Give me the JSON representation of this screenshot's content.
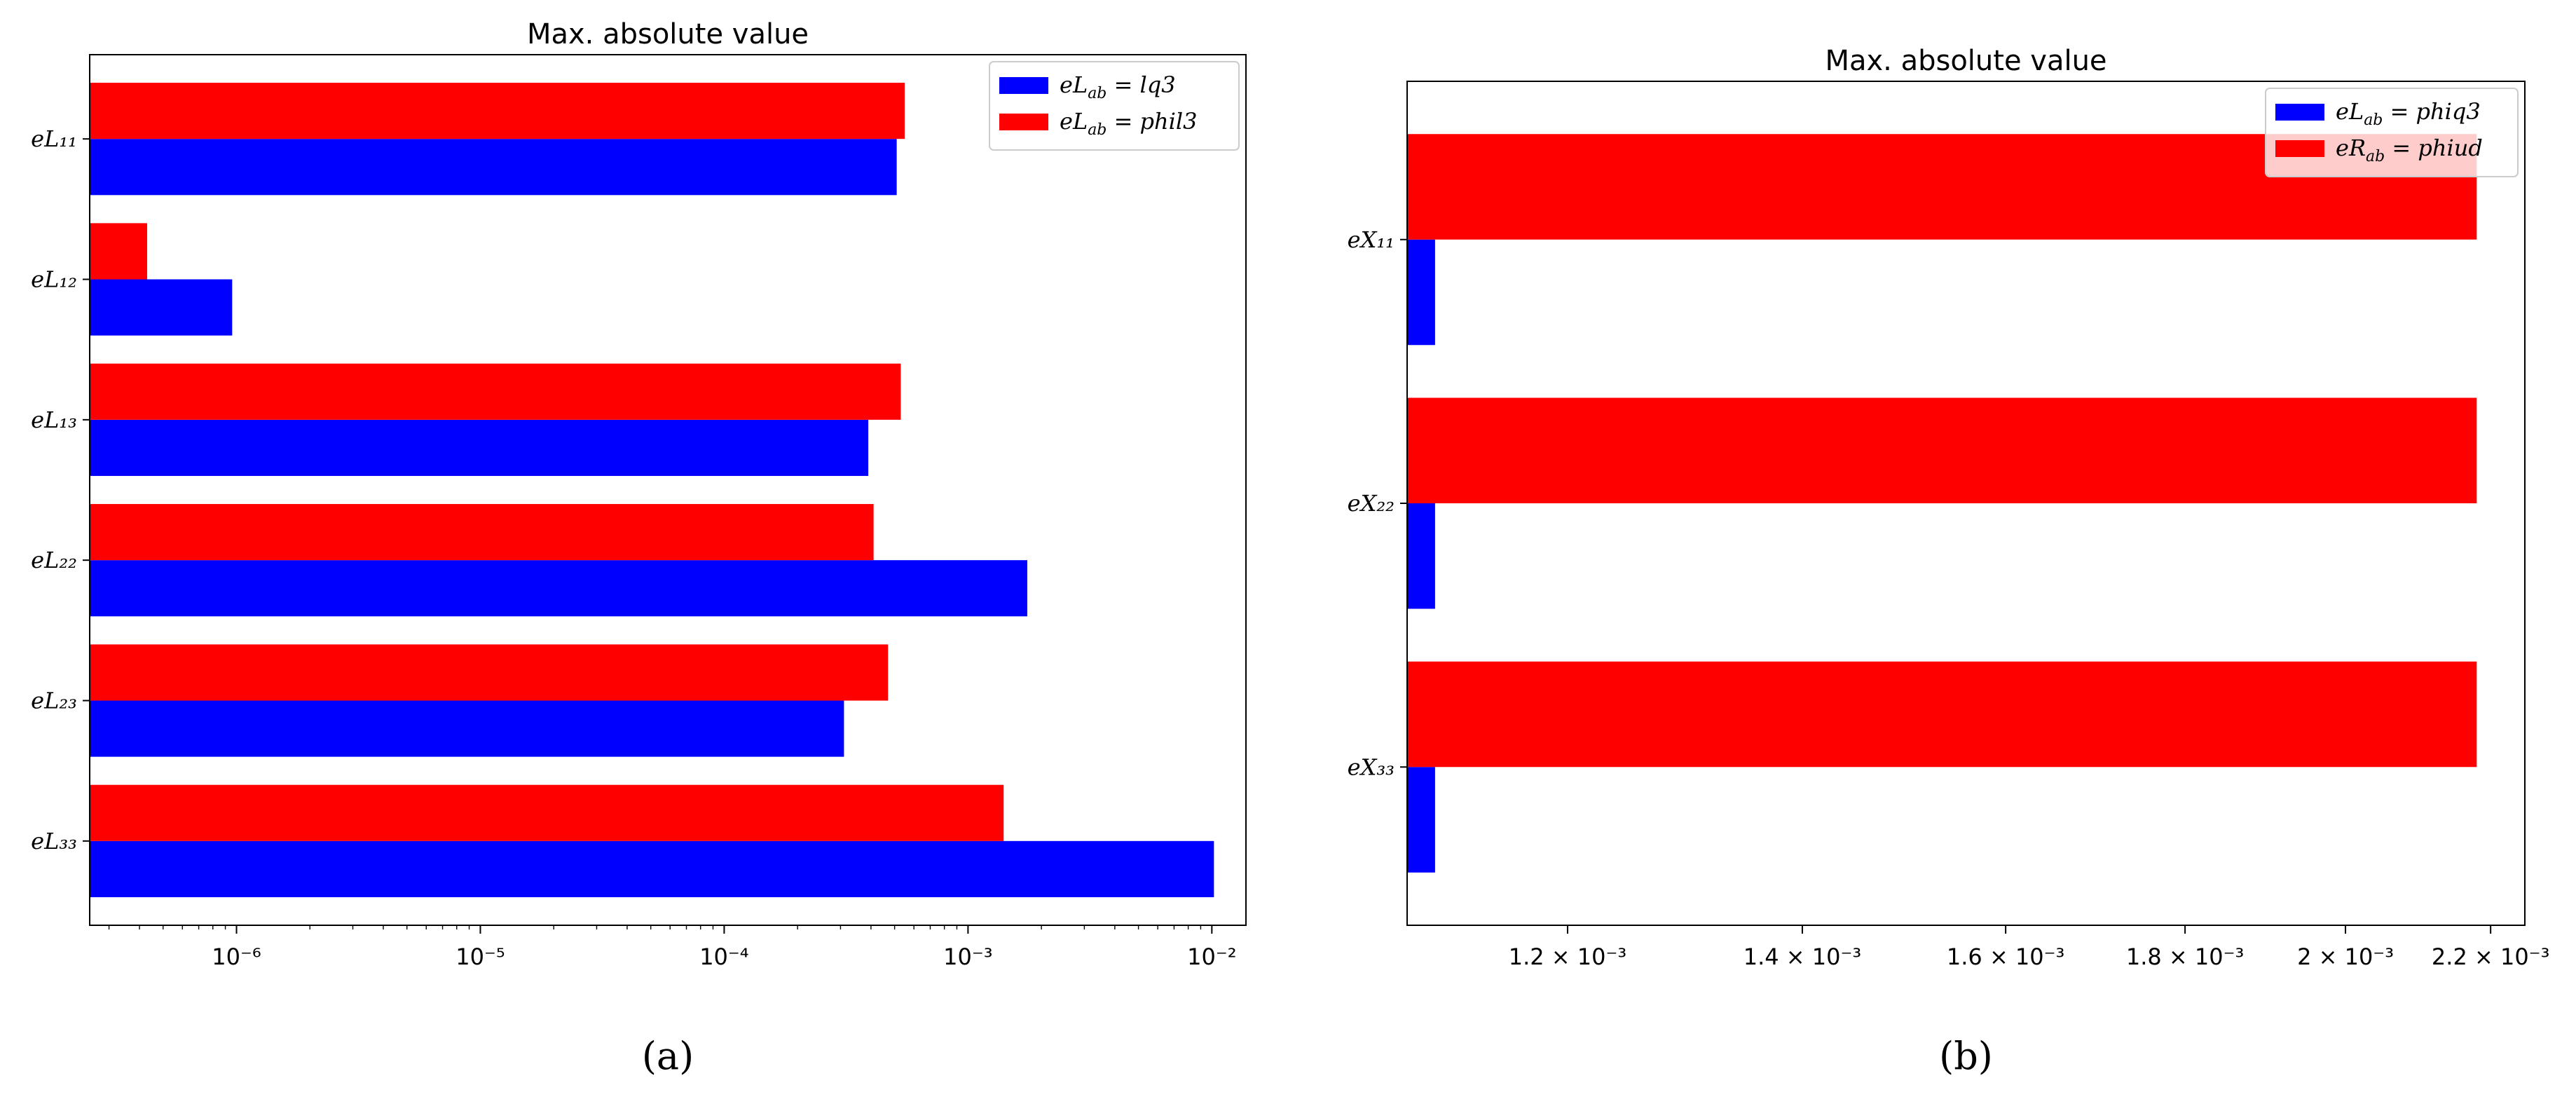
{
  "chart_data": [
    {
      "type": "bar",
      "orientation": "horizontal",
      "title": "Max. absolute value",
      "caption": "(a)",
      "xscale": "log",
      "xlim": [
        2.5e-07,
        0.0138
      ],
      "xticks": [
        1e-06,
        1e-05,
        0.0001,
        0.001,
        0.01
      ],
      "xtick_labels": [
        "10⁻⁶",
        "10⁻⁵",
        "10⁻⁴",
        "10⁻³",
        "10⁻²"
      ],
      "categories": [
        "eL₁₁",
        "eL₁₂",
        "eL₁₃",
        "eL₂₂",
        "eL₂₃",
        "eL₃₃"
      ],
      "series": [
        {
          "name": "eL_ab = lq3",
          "color": "#0000ff",
          "values": [
            0.00051,
            9.6e-07,
            0.00039,
            0.00175,
            0.00031,
            0.0102
          ]
        },
        {
          "name": "eL_ab = phil3",
          "color": "#ff0000",
          "values": [
            0.00055,
            4.3e-07,
            0.00053,
            0.00041,
            0.00047,
            0.0014
          ]
        }
      ],
      "legend": {
        "placement": "top-right",
        "entries": [
          "eL<sub>ab</sub> = lq3",
          "eL<sub>ab</sub> = phil3"
        ]
      }
    },
    {
      "type": "bar",
      "orientation": "horizontal",
      "title": "Max. absolute value",
      "caption": "(b)",
      "xscale": "log",
      "xlim": [
        0.00108,
        0.00225
      ],
      "xticks": [
        0.0012,
        0.0014,
        0.0016,
        0.0018,
        0.002,
        0.0022
      ],
      "xtick_labels": [
        "1.2 × 10⁻³",
        "1.4 × 10⁻³",
        "1.6 × 10⁻³",
        "1.8 × 10⁻³",
        "2 × 10⁻³",
        "2.2 × 10⁻³"
      ],
      "categories": [
        "eX₁₁",
        "eX₂₂",
        "eX₃₃"
      ],
      "series": [
        {
          "name": "eL_ab = phiq3",
          "color": "#0000ff",
          "values": [
            0.0011,
            0.0011,
            0.0011
          ]
        },
        {
          "name": "eR_ab = phiud",
          "color": "#ff0000",
          "values": [
            0.00218,
            0.00218,
            0.00218
          ]
        }
      ],
      "legend": {
        "placement": "top-right",
        "entries": [
          "eL<sub>ab</sub> = phiq3",
          "eR<sub>ab</sub> = phiud"
        ]
      }
    }
  ]
}
